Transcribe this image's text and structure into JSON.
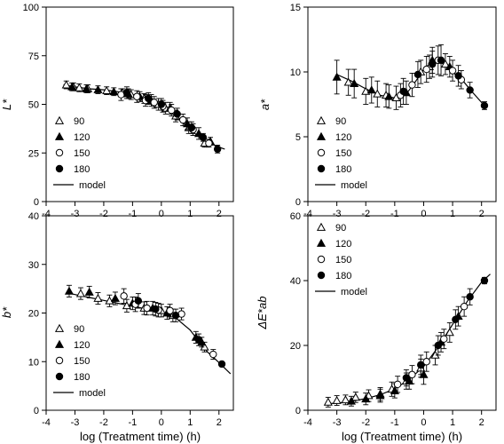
{
  "chart_data": [
    {
      "type": "scatter",
      "ylabel": "L*",
      "xlabel": "",
      "xlim": [
        -4,
        2.5
      ],
      "ylim": [
        0,
        100
      ],
      "xticks": [
        "-4",
        "-3",
        "-2",
        "-1",
        "0",
        "1",
        "2"
      ],
      "yticks": [
        "0",
        "25",
        "50",
        "75",
        "100"
      ],
      "legend": [
        "90",
        "120",
        "150",
        "180",
        "model"
      ],
      "legend_position": "bottom-left",
      "model": {
        "x": [
          -3.4,
          -3,
          -2.5,
          -2,
          -1.5,
          -1,
          -0.5,
          0,
          0.5,
          1,
          1.5,
          2,
          2.2
        ],
        "y": [
          60,
          59,
          58,
          57.5,
          56.5,
          55,
          53,
          49,
          44,
          37,
          31,
          28,
          27
        ]
      },
      "series": [
        {
          "name": "90",
          "marker": "open-triangle",
          "x": [
            -3.3,
            -3.05,
            -2.85,
            -2.55,
            -1.9,
            -1.35,
            -1.05,
            -0.6,
            -0.1,
            0.15,
            0.5,
            0.95,
            1.5
          ],
          "y": [
            60,
            59,
            58.5,
            58,
            57,
            56,
            55,
            53,
            50,
            48,
            44,
            38,
            30
          ],
          "err": [
            2,
            2,
            2,
            2,
            2,
            2,
            2.5,
            2.5,
            3,
            3,
            3,
            3,
            2
          ]
        },
        {
          "name": "120",
          "marker": "filled-triangle",
          "x": [
            -3.1,
            -2.6,
            -2.2,
            -1.65,
            -1.15,
            -0.75,
            -0.35,
            0.3,
            0.9,
            1.3,
            1.7
          ],
          "y": [
            59,
            58,
            57.5,
            56.5,
            55.5,
            54,
            52,
            48,
            40,
            35,
            31
          ],
          "err": [
            2,
            2,
            2,
            2,
            2.5,
            2.5,
            3,
            3,
            3,
            3,
            2
          ]
        },
        {
          "name": "150",
          "marker": "open-circle",
          "x": [
            -1.4,
            -0.85,
            -0.55,
            -0.25,
            0.05,
            0.35,
            0.75,
            1.1,
            1.65
          ],
          "y": [
            55,
            54,
            52,
            51,
            49,
            47,
            42,
            37,
            30
          ],
          "err": [
            3,
            3,
            3,
            3,
            3,
            3,
            3,
            3,
            2
          ]
        },
        {
          "name": "180",
          "marker": "filled-circle",
          "x": [
            -1.2,
            -0.45,
            0,
            0.55,
            1.05,
            1.45,
            1.95
          ],
          "y": [
            56,
            53,
            50,
            45,
            38,
            33,
            27
          ],
          "err": [
            3,
            3,
            3,
            3,
            3,
            2,
            2
          ]
        }
      ]
    },
    {
      "type": "scatter",
      "ylabel": "a*",
      "xlabel": "",
      "xlim": [
        -4,
        2.5
      ],
      "ylim": [
        0,
        15
      ],
      "xticks": [
        "-4",
        "-3",
        "-2",
        "-1",
        "0",
        "1",
        "2"
      ],
      "yticks": [
        "0",
        "5",
        "10",
        "15"
      ],
      "legend": [
        "90",
        "120",
        "150",
        "180",
        "model"
      ],
      "legend_position": "bottom-left",
      "model": {
        "x": [
          -3,
          -2.5,
          -2,
          -1.5,
          -1,
          -0.6,
          -0.3,
          0,
          0.3,
          0.5,
          0.8,
          1.1,
          1.4,
          1.7,
          2.1
        ],
        "y": [
          9.8,
          9.3,
          8.7,
          8.2,
          8.0,
          8.3,
          9.2,
          10.2,
          10.8,
          10.9,
          10.4,
          9.8,
          9.2,
          8.4,
          7.4
        ]
      },
      "series": [
        {
          "name": "90",
          "marker": "open-triangle",
          "x": [
            -2.6,
            -2,
            -1.6,
            -1.3,
            -0.95,
            -0.1,
            0.2,
            0.75
          ],
          "y": [
            9.2,
            8.5,
            8.3,
            8.2,
            8.0,
            10.0,
            10.4,
            10.6
          ],
          "err": [
            1.0,
            1.0,
            1.0,
            0.9,
            0.9,
            0.9,
            0.9,
            0.8
          ]
        },
        {
          "name": "120",
          "marker": "filled-triangle",
          "x": [
            -3.0,
            -2.4,
            -1.8,
            -1.2,
            -0.6,
            0.3,
            0.9
          ],
          "y": [
            9.6,
            9.1,
            8.6,
            8.1,
            8.4,
            10.9,
            10.4
          ],
          "err": [
            1.3,
            1.1,
            1.0,
            0.9,
            0.9,
            1.0,
            0.8
          ]
        },
        {
          "name": "150",
          "marker": "open-circle",
          "x": [
            -0.8,
            -0.4,
            0.1,
            0.5,
            1.0,
            1.3
          ],
          "y": [
            8.2,
            9.0,
            10.2,
            10.9,
            10.1,
            9.4
          ],
          "err": [
            0.9,
            0.9,
            1.0,
            1.1,
            0.8,
            0.7
          ]
        },
        {
          "name": "180",
          "marker": "filled-circle",
          "x": [
            -0.7,
            -0.2,
            0.3,
            0.6,
            1.2,
            1.6,
            2.1
          ],
          "y": [
            8.5,
            9.8,
            10.6,
            10.9,
            9.7,
            8.6,
            7.4
          ],
          "err": [
            1.0,
            1.0,
            1.0,
            1.2,
            0.8,
            0.6,
            0.3
          ]
        }
      ]
    },
    {
      "type": "scatter",
      "ylabel": "b*",
      "xlabel": "log (Treatment time) (h)",
      "xlim": [
        -4,
        2.5
      ],
      "ylim": [
        0,
        40
      ],
      "xticks": [
        "-4",
        "-3",
        "-2",
        "-1",
        "0",
        "1",
        "2"
      ],
      "yticks": [
        "0",
        "10",
        "20",
        "30",
        "40"
      ],
      "legend": [
        "90",
        "120",
        "150",
        "180",
        "model"
      ],
      "legend_position": "bottom-left",
      "model": {
        "x": [
          -3.3,
          -3,
          -2.5,
          -2,
          -1.5,
          -1,
          -0.5,
          0,
          0.5,
          1,
          1.3,
          1.6,
          2.0,
          2.4
        ],
        "y": [
          24.2,
          23.8,
          23.2,
          22.6,
          22.0,
          21.4,
          20.8,
          20.1,
          19.0,
          16.5,
          14.2,
          12.0,
          9.8,
          7.5
        ]
      },
      "series": [
        {
          "name": "90",
          "marker": "open-triangle",
          "x": [
            -2.8,
            -2.2,
            -1.8,
            -1.2,
            -0.6,
            0.0,
            0.4,
            1.5
          ],
          "y": [
            24.0,
            23.0,
            22.5,
            21.5,
            21.0,
            20.5,
            19.5,
            13.0
          ],
          "err": [
            1.2,
            1.2,
            1.2,
            1.3,
            1.3,
            1.3,
            1.3,
            1.0
          ]
        },
        {
          "name": "120",
          "marker": "filled-triangle",
          "x": [
            -3.2,
            -2.5,
            -1.6,
            -1.0,
            -0.3,
            0.2,
            1.2,
            1.4
          ],
          "y": [
            24.5,
            24.3,
            23.0,
            22.0,
            21.0,
            20.0,
            15.0,
            14.0
          ],
          "err": [
            1.2,
            1.2,
            1.3,
            1.3,
            1.4,
            1.3,
            1.2,
            1.0
          ]
        },
        {
          "name": "150",
          "marker": "open-circle",
          "x": [
            -1.3,
            -0.9,
            -0.5,
            -0.1,
            0.3,
            0.7,
            1.8
          ],
          "y": [
            23.5,
            21.8,
            21.0,
            20.6,
            20.5,
            19.8,
            11.5
          ],
          "err": [
            1.5,
            1.5,
            1.4,
            1.4,
            1.3,
            1.2,
            1.0
          ]
        },
        {
          "name": "180",
          "marker": "filled-circle",
          "x": [
            -0.8,
            -0.2,
            0.5,
            1.3,
            2.1
          ],
          "y": [
            22.5,
            20.8,
            19.5,
            14.5,
            9.5
          ],
          "err": [
            1.5,
            1.4,
            1.3,
            1.2,
            0.5
          ]
        }
      ]
    },
    {
      "type": "scatter",
      "ylabel": "ΔE*ab",
      "xlabel": "log (Treatment time) (h)",
      "xlim": [
        -4,
        2.5
      ],
      "ylim": [
        0,
        60
      ],
      "xticks": [
        "-4",
        "-3",
        "-2",
        "-1",
        "0",
        "1",
        "2"
      ],
      "yticks": [
        "0",
        "20",
        "40",
        "60"
      ],
      "legend": [
        "90",
        "120",
        "150",
        "180",
        "model"
      ],
      "legend_position": "top-left",
      "model": {
        "x": [
          -3.4,
          -3,
          -2.5,
          -2,
          -1.5,
          -1,
          -0.5,
          0,
          0.5,
          1,
          1.5,
          2,
          2.3
        ],
        "y": [
          2.0,
          2.2,
          2.8,
          3.6,
          4.8,
          6.6,
          9.5,
          13.5,
          19.5,
          26.5,
          33.5,
          39.5,
          42.0
        ]
      },
      "series": [
        {
          "name": "90",
          "marker": "open-triangle",
          "x": [
            -3.3,
            -3.0,
            -2.7,
            -2.35,
            -1.9,
            -1.5,
            -1.1,
            -0.6,
            -0.1,
            0.4,
            0.9
          ],
          "y": [
            2.5,
            3.0,
            3.2,
            4.0,
            4.5,
            5.0,
            6.5,
            9.0,
            13.0,
            17.0,
            24.0
          ],
          "err": [
            1.5,
            1.5,
            1.5,
            1.6,
            1.8,
            2.0,
            2.2,
            2.5,
            2.8,
            3.0,
            3.0
          ]
        },
        {
          "name": "120",
          "marker": "filled-triangle",
          "x": [
            -2.5,
            -2.0,
            -1.5,
            -1.0,
            -0.5,
            0.0,
            0.6,
            1.2
          ],
          "y": [
            2.8,
            3.5,
            4.5,
            6.0,
            9.0,
            11.0,
            21.0,
            29.0
          ],
          "err": [
            1.5,
            1.8,
            2.0,
            2.2,
            2.5,
            3.0,
            3.0,
            3.0
          ]
        },
        {
          "name": "150",
          "marker": "open-circle",
          "x": [
            -0.9,
            -0.4,
            0.1,
            0.7,
            1.4
          ],
          "y": [
            8.0,
            11.0,
            15.0,
            22.0,
            32.0
          ],
          "err": [
            2.5,
            2.8,
            3.0,
            3.0,
            3.0
          ]
        },
        {
          "name": "180",
          "marker": "filled-circle",
          "x": [
            -0.6,
            -0.1,
            0.5,
            1.1,
            1.6,
            2.1
          ],
          "y": [
            10.0,
            14.0,
            20.0,
            28.0,
            35.0,
            40.0
          ],
          "err": [
            2.5,
            3.0,
            3.0,
            3.0,
            2.5,
            1.0
          ]
        }
      ]
    }
  ]
}
